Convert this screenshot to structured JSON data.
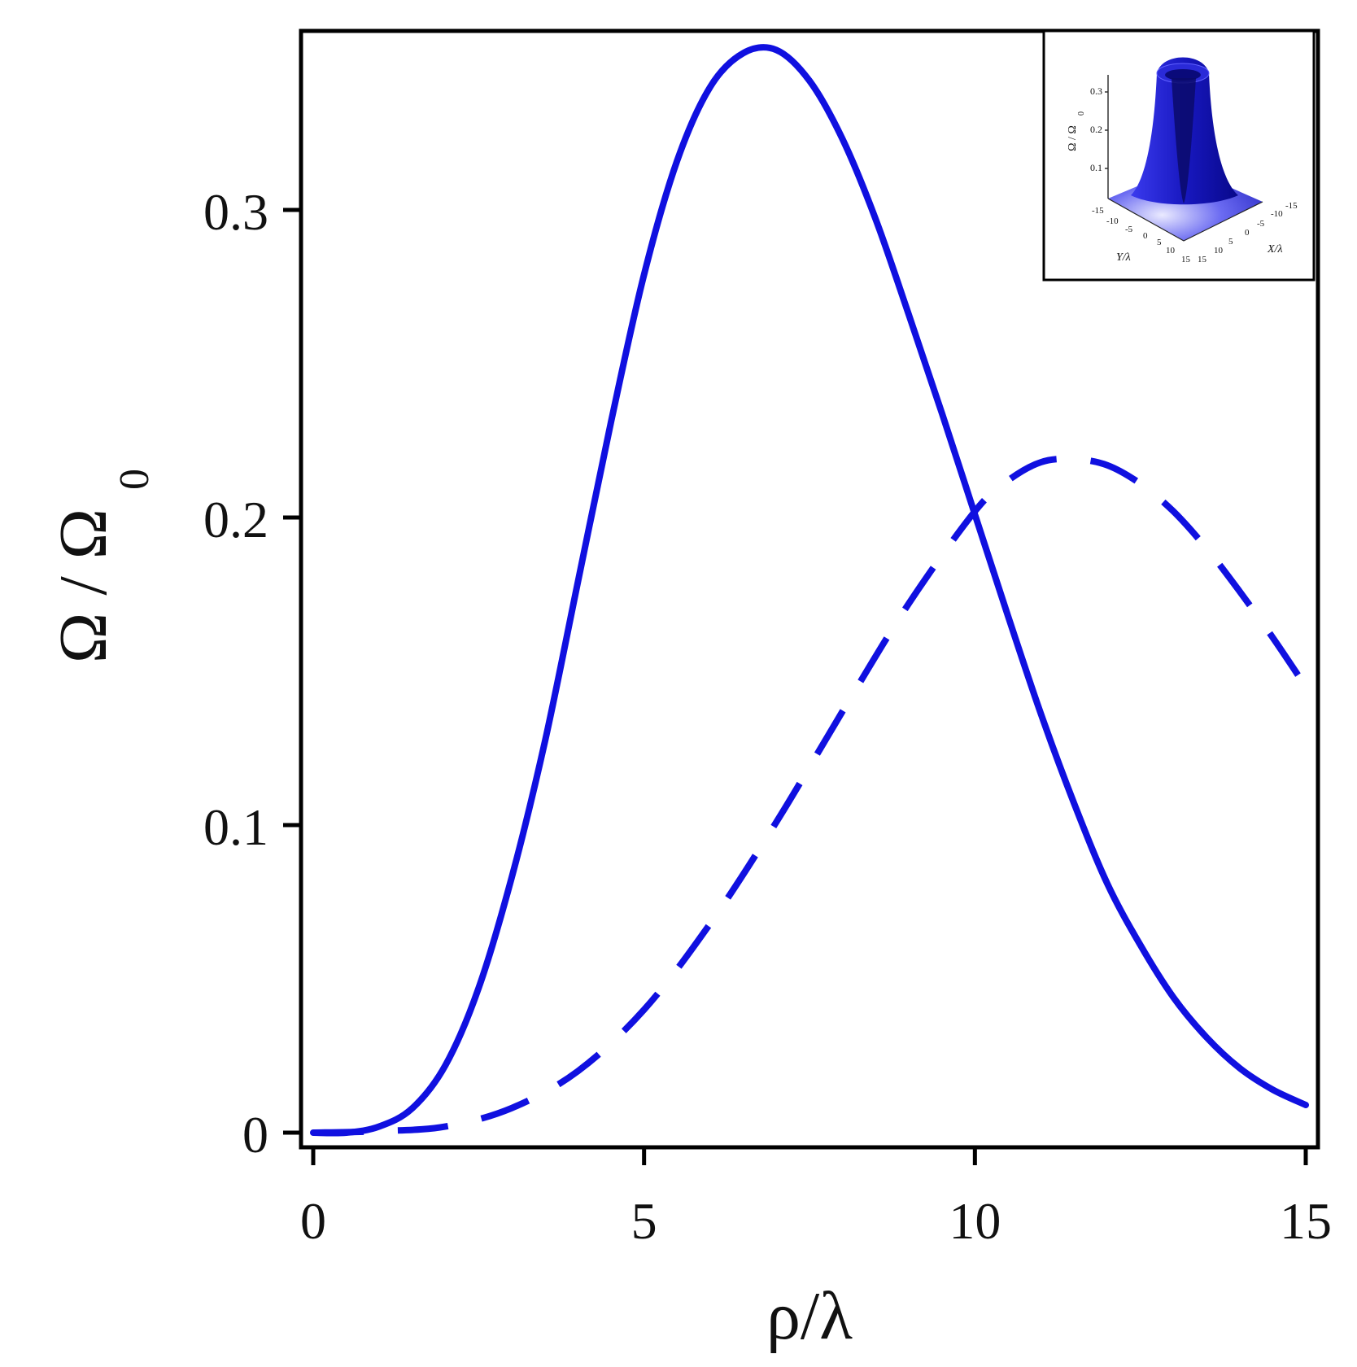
{
  "chart_data": [
    {
      "type": "line",
      "xlabel": "ρ/λ",
      "ylabel": "Ω / Ω",
      "ylabel_subscript": "0",
      "xlim": [
        0,
        15
      ],
      "ylim": [
        0,
        0.35
      ],
      "x_ticks": [
        0,
        5,
        10,
        15
      ],
      "x_tick_labels": [
        "0",
        "5",
        "10",
        "15"
      ],
      "y_ticks": [
        0,
        0.1,
        0.2,
        0.3
      ],
      "y_tick_labels": [
        "0",
        "0.1",
        "0.2",
        "0.3"
      ],
      "grid": false,
      "line_color": "#1010e0",
      "series": [
        {
          "style": "solid",
          "x": [
            0,
            0.5,
            1,
            1.5,
            2,
            2.5,
            3,
            3.5,
            4,
            4.5,
            5,
            5.5,
            6,
            6.5,
            7,
            7.5,
            8,
            8.5,
            9,
            9.5,
            10,
            10.5,
            11,
            11.5,
            12,
            12.5,
            13,
            13.5,
            14,
            14.5,
            15
          ],
          "values": [
            0,
            0,
            0.002,
            0.008,
            0.022,
            0.047,
            0.083,
            0.127,
            0.179,
            0.231,
            0.279,
            0.316,
            0.34,
            0.351,
            0.352,
            0.342,
            0.323,
            0.297,
            0.266,
            0.234,
            0.201,
            0.168,
            0.136,
            0.107,
            0.081,
            0.061,
            0.044,
            0.031,
            0.021,
            0.014,
            0.009
          ]
        },
        {
          "style": "dashed",
          "x": [
            0,
            1,
            2,
            3,
            4,
            5,
            6,
            7,
            8,
            9,
            10,
            10.5,
            11,
            11.5,
            12,
            12.5,
            13,
            13.5,
            14,
            14.5,
            15
          ],
          "values": [
            0,
            0.0005,
            0.002,
            0.008,
            0.02,
            0.04,
            0.068,
            0.101,
            0.137,
            0.172,
            0.202,
            0.212,
            0.218,
            0.219,
            0.217,
            0.211,
            0.202,
            0.19,
            0.176,
            0.161,
            0.145
          ]
        }
      ]
    },
    {
      "type": "surface",
      "role": "inset",
      "zlabel": "Ω / Ω",
      "zlabel_subscript": "0",
      "xlabel": "X/λ",
      "ylabel": "Y/λ",
      "z_tick_labels": [
        "0.1",
        "0.2",
        "0.3"
      ],
      "x_tick_labels": [
        "15",
        "10",
        "5",
        "0",
        "-5",
        "-10",
        "-15"
      ],
      "y_tick_labels": [
        "-15",
        "-10",
        "-5",
        "0",
        "5",
        "10",
        "15"
      ],
      "surface_color": "#1a1ad0"
    }
  ]
}
